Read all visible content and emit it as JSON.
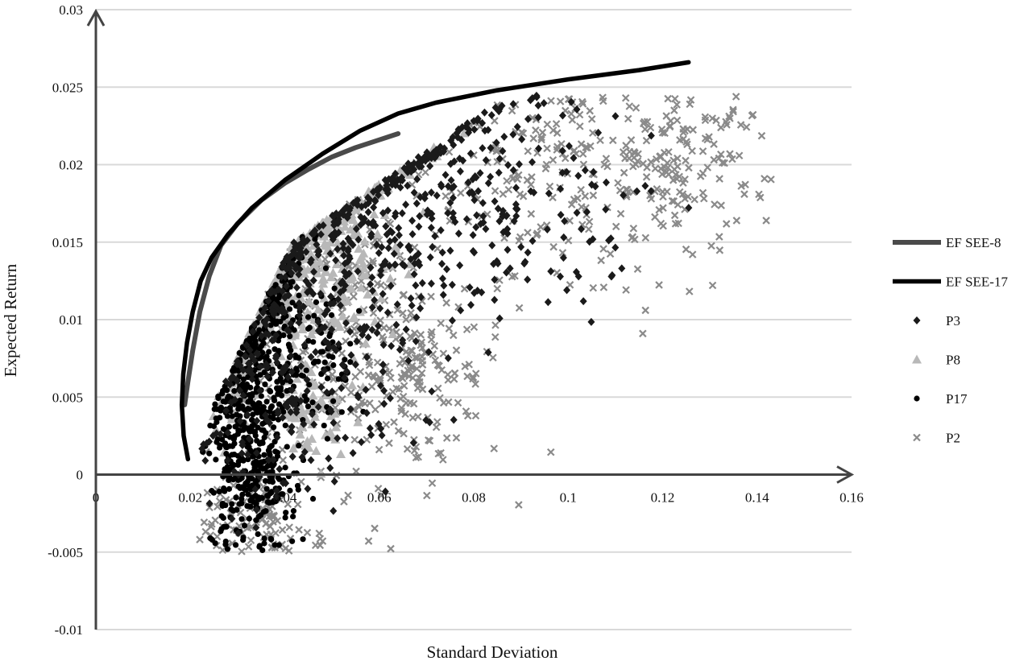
{
  "chart_data": {
    "type": "scatter",
    "title": "",
    "xlabel": "Standard Deviation",
    "ylabel": "Expected Return",
    "xlim": [
      0,
      0.16
    ],
    "ylim": [
      -0.01,
      0.03
    ],
    "xticks": [
      0,
      0.02,
      0.04,
      0.06,
      0.08,
      0.1,
      0.12,
      0.14,
      0.16
    ],
    "xtick_labels": [
      "0",
      "0.02",
      "0.04",
      "0.06",
      "0.08",
      "0.1",
      "0.12",
      "0.14",
      "0.16"
    ],
    "yticks": [
      -0.01,
      -0.005,
      0,
      0.005,
      0.01,
      0.015,
      0.02,
      0.025,
      0.03
    ],
    "ytick_labels": [
      "-0.01",
      "-0.005",
      "0",
      "0.005",
      "0.01",
      "0.015",
      "0.02",
      "0.025",
      "0.03"
    ],
    "grid": "horizontal",
    "legend_position": "right",
    "colors": {
      "ef8": "#4a4a4a",
      "ef17": "#000000",
      "p3": "#1a1a1a",
      "p8": "#b8b8b8",
      "p17": "#000000",
      "p2": "#8a8a8a",
      "grid": "#d9d9d9",
      "axis": "#444444"
    },
    "series": [
      {
        "name": "EF SEE-8",
        "kind": "line",
        "color_key": "ef8",
        "points": [
          [
            0.0188,
            0.0045
          ],
          [
            0.0195,
            0.006
          ],
          [
            0.0205,
            0.008
          ],
          [
            0.022,
            0.0105
          ],
          [
            0.024,
            0.0128
          ],
          [
            0.0265,
            0.0148
          ],
          [
            0.03,
            0.0162
          ],
          [
            0.035,
            0.0177
          ],
          [
            0.04,
            0.0188
          ],
          [
            0.045,
            0.0197
          ],
          [
            0.05,
            0.0205
          ],
          [
            0.055,
            0.0211
          ],
          [
            0.06,
            0.0216
          ],
          [
            0.064,
            0.022
          ]
        ]
      },
      {
        "name": "EF SEE-17",
        "kind": "line",
        "color_key": "ef17",
        "points": [
          [
            0.0195,
            0.001
          ],
          [
            0.0186,
            0.0025
          ],
          [
            0.0182,
            0.0045
          ],
          [
            0.0185,
            0.0065
          ],
          [
            0.0193,
            0.0085
          ],
          [
            0.0205,
            0.0105
          ],
          [
            0.0222,
            0.0125
          ],
          [
            0.0245,
            0.014
          ],
          [
            0.028,
            0.0155
          ],
          [
            0.033,
            0.0172
          ],
          [
            0.04,
            0.019
          ],
          [
            0.048,
            0.0207
          ],
          [
            0.056,
            0.0222
          ],
          [
            0.064,
            0.0233
          ],
          [
            0.072,
            0.024
          ],
          [
            0.085,
            0.0248
          ],
          [
            0.1,
            0.0255
          ],
          [
            0.115,
            0.0261
          ],
          [
            0.1255,
            0.0266
          ]
        ]
      },
      {
        "name": "P3",
        "kind": "scatter",
        "marker": "diamond",
        "color_key": "p3",
        "clusters": [
          {
            "cx": 0.046,
            "cy": 0.0115,
            "sx": 0.013,
            "sy": 0.0055,
            "n": 320
          },
          {
            "cx": 0.085,
            "cy": 0.018,
            "sx": 0.016,
            "sy": 0.0035,
            "n": 190
          },
          {
            "cx": 0.062,
            "cy": 0.016,
            "sx": 0.01,
            "sy": 0.0035,
            "n": 120
          },
          {
            "cx": 0.036,
            "cy": 0.004,
            "sx": 0.007,
            "sy": 0.0035,
            "n": 90
          }
        ]
      },
      {
        "name": "P8",
        "kind": "scatter",
        "marker": "triangle",
        "color_key": "p8",
        "clusters": [
          {
            "cx": 0.042,
            "cy": 0.0135,
            "sx": 0.011,
            "sy": 0.003,
            "n": 380
          },
          {
            "cx": 0.029,
            "cy": 0.0095,
            "sx": 0.004,
            "sy": 0.003,
            "n": 160
          },
          {
            "cx": 0.047,
            "cy": 0.004,
            "sx": 0.004,
            "sy": 0.0015,
            "n": 70
          }
        ]
      },
      {
        "name": "P17",
        "kind": "scatter",
        "marker": "circle",
        "color_key": "p17",
        "clusters": [
          {
            "cx": 0.0325,
            "cy": 0.004,
            "sx": 0.0045,
            "sy": 0.0045,
            "n": 480
          },
          {
            "cx": 0.043,
            "cy": 0.008,
            "sx": 0.006,
            "sy": 0.0025,
            "n": 150
          },
          {
            "cx": 0.034,
            "cy": -0.001,
            "sx": 0.004,
            "sy": 0.0012,
            "n": 80
          }
        ]
      },
      {
        "name": "P2",
        "kind": "scatter",
        "marker": "x",
        "color_key": "p2",
        "clusters": [
          {
            "cx": 0.105,
            "cy": 0.0195,
            "sx": 0.019,
            "sy": 0.0035,
            "n": 260
          },
          {
            "cx": 0.055,
            "cy": 0.008,
            "sx": 0.014,
            "sy": 0.005,
            "n": 320
          },
          {
            "cx": 0.035,
            "cy": -0.003,
            "sx": 0.006,
            "sy": 0.0015,
            "n": 100
          },
          {
            "cx": 0.068,
            "cy": 0.0065,
            "sx": 0.006,
            "sy": 0.0015,
            "n": 70
          },
          {
            "cx": 0.125,
            "cy": 0.021,
            "sx": 0.008,
            "sy": 0.0018,
            "n": 70
          }
        ]
      }
    ],
    "legend": [
      {
        "label": "EF SEE-8",
        "symbol": "line",
        "color_key": "ef8"
      },
      {
        "label": "EF SEE-17",
        "symbol": "line",
        "color_key": "ef17"
      },
      {
        "label": "P3",
        "symbol": "diamond",
        "color_key": "p3"
      },
      {
        "label": "P8",
        "symbol": "triangle",
        "color_key": "p8"
      },
      {
        "label": "P17",
        "symbol": "circle",
        "color_key": "p17"
      },
      {
        "label": "P2",
        "symbol": "x",
        "color_key": "p2"
      }
    ]
  }
}
